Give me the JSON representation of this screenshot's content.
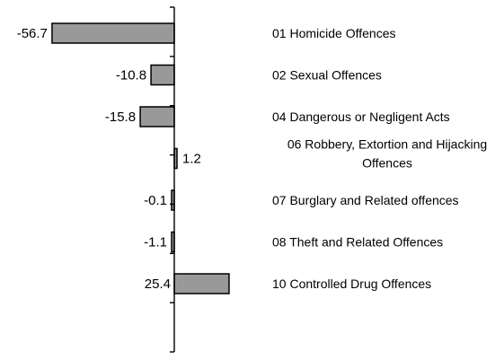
{
  "chart_data": {
    "type": "bar",
    "orientation": "horizontal",
    "categories": [
      "01 Homicide Offences",
      "02 Sexual Offences",
      "04 Dangerous or Negligent Acts",
      "06 Robbery, Extortion and Hijacking Offences",
      "07 Burglary and Related offences",
      "08 Theft and Related Offences",
      "10 Controlled Drug Offences"
    ],
    "category_lines": [
      [
        "01 Homicide Offences"
      ],
      [
        "02 Sexual Offences"
      ],
      [
        "04 Dangerous or Negligent Acts"
      ],
      [
        "06 Robbery, Extortion and Hijacking",
        "Offences"
      ],
      [
        "07 Burglary and Related offences"
      ],
      [
        "08 Theft and Related Offences"
      ],
      [
        "10 Controlled Drug Offences"
      ]
    ],
    "values": [
      -56.7,
      -10.8,
      -15.8,
      1.2,
      -0.1,
      -1.1,
      25.4
    ],
    "value_labels": [
      "-56.7",
      "-10.8",
      "-15.8",
      "1.2",
      "-0.1",
      "-1.1",
      "25.4"
    ],
    "bar_color": "#999999",
    "bar_stroke": "#000000",
    "grid": false,
    "legend": "none"
  }
}
